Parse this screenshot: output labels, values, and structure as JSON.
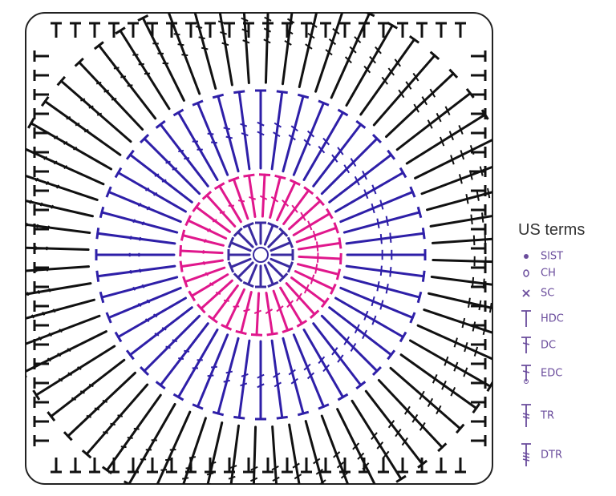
{
  "legend": {
    "title": "US terms",
    "items": [
      {
        "label": "SlST"
      },
      {
        "label": "CH"
      },
      {
        "label": "SC"
      },
      {
        "label": "HDC"
      },
      {
        "label": "DC"
      },
      {
        "label": "EDC"
      },
      {
        "label": "TR"
      },
      {
        "label": "DTR"
      }
    ]
  }
}
